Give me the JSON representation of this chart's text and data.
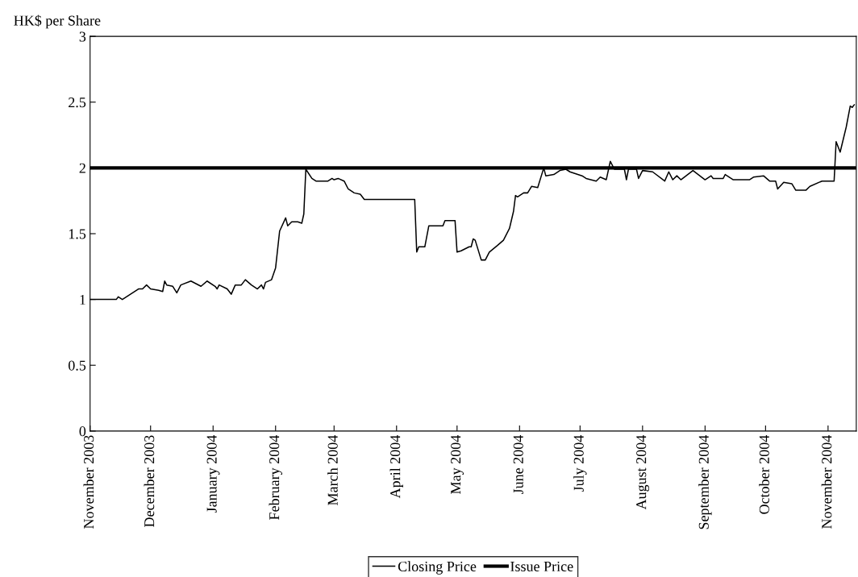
{
  "chart_data": {
    "type": "line",
    "ylabel": "HK$ per Share",
    "x": [
      "2003-11-01",
      "2003-11-14",
      "2003-11-15",
      "2003-11-17",
      "2003-11-21",
      "2003-11-25",
      "2003-11-27",
      "2003-11-29",
      "2003-12-01",
      "2003-12-05",
      "2003-12-07",
      "2003-12-08",
      "2003-12-09",
      "2003-12-12",
      "2003-12-14",
      "2003-12-16",
      "2003-12-21",
      "2003-12-26",
      "2003-12-29",
      "2004-01-02",
      "2004-01-03",
      "2004-01-04",
      "2004-01-08",
      "2004-01-10",
      "2004-01-12",
      "2004-01-15",
      "2004-01-17",
      "2004-01-20",
      "2004-01-23",
      "2004-01-25",
      "2004-01-26",
      "2004-01-27",
      "2004-01-30",
      "2004-02-01",
      "2004-02-03",
      "2004-02-06",
      "2004-02-07",
      "2004-02-09",
      "2004-02-12",
      "2004-02-14",
      "2004-02-15",
      "2004-02-16",
      "2004-02-19",
      "2004-02-21",
      "2004-02-27",
      "2004-02-29",
      "2004-03-01",
      "2004-03-03",
      "2004-03-06",
      "2004-03-08",
      "2004-03-11",
      "2004-03-14",
      "2004-03-16",
      "2004-04-10",
      "2004-04-11",
      "2004-04-12",
      "2004-04-15",
      "2004-04-17",
      "2004-04-24",
      "2004-04-25",
      "2004-04-30",
      "2004-05-01",
      "2004-05-03",
      "2004-05-07",
      "2004-05-08",
      "2004-05-09",
      "2004-05-10",
      "2004-05-13",
      "2004-05-15",
      "2004-05-17",
      "2004-05-21",
      "2004-05-24",
      "2004-05-27",
      "2004-05-29",
      "2004-05-30",
      "2004-05-31",
      "2004-06-03",
      "2004-06-05",
      "2004-06-07",
      "2004-06-10",
      "2004-06-13",
      "2004-06-14",
      "2004-06-18",
      "2004-06-21",
      "2004-06-24",
      "2004-06-26",
      "2004-07-02",
      "2004-07-04",
      "2004-07-09",
      "2004-07-11",
      "2004-07-14",
      "2004-07-16",
      "2004-07-18",
      "2004-07-23",
      "2004-07-24",
      "2004-07-25",
      "2004-07-29",
      "2004-07-30",
      "2004-08-01",
      "2004-08-06",
      "2004-08-12",
      "2004-08-14",
      "2004-08-16",
      "2004-08-18",
      "2004-08-20",
      "2004-08-26",
      "2004-09-01",
      "2004-09-04",
      "2004-09-05",
      "2004-09-10",
      "2004-09-11",
      "2004-09-15",
      "2004-09-23",
      "2004-09-25",
      "2004-09-30",
      "2004-10-03",
      "2004-10-06",
      "2004-10-07",
      "2004-10-10",
      "2004-10-14",
      "2004-10-16",
      "2004-10-21",
      "2004-10-23",
      "2004-10-29",
      "2004-11-04",
      "2004-11-05",
      "2004-11-07",
      "2004-11-10",
      "2004-11-12",
      "2004-11-13",
      "2004-11-14"
    ],
    "series": [
      {
        "name": "Closing Price",
        "color": "#000000",
        "values": [
          1.0,
          1.0,
          1.02,
          1.0,
          1.04,
          1.08,
          1.08,
          1.11,
          1.08,
          1.07,
          1.06,
          1.14,
          1.11,
          1.1,
          1.05,
          1.11,
          1.14,
          1.1,
          1.14,
          1.1,
          1.08,
          1.11,
          1.08,
          1.04,
          1.11,
          1.11,
          1.15,
          1.11,
          1.08,
          1.11,
          1.08,
          1.13,
          1.15,
          1.24,
          1.52,
          1.62,
          1.56,
          1.59,
          1.59,
          1.58,
          1.65,
          1.99,
          1.92,
          1.9,
          1.9,
          1.92,
          1.91,
          1.92,
          1.9,
          1.84,
          1.81,
          1.8,
          1.76,
          1.76,
          1.36,
          1.4,
          1.4,
          1.56,
          1.56,
          1.6,
          1.6,
          1.36,
          1.37,
          1.4,
          1.4,
          1.46,
          1.45,
          1.3,
          1.3,
          1.36,
          1.41,
          1.45,
          1.54,
          1.67,
          1.79,
          1.78,
          1.81,
          1.81,
          1.86,
          1.85,
          2.0,
          1.94,
          1.95,
          1.98,
          1.99,
          1.97,
          1.94,
          1.92,
          1.9,
          1.93,
          1.91,
          2.05,
          1.99,
          1.99,
          1.91,
          1.99,
          1.99,
          1.92,
          1.98,
          1.97,
          1.9,
          1.97,
          1.91,
          1.94,
          1.91,
          1.98,
          1.91,
          1.94,
          1.92,
          1.92,
          1.95,
          1.91,
          1.91,
          1.93,
          1.94,
          1.9,
          1.9,
          1.84,
          1.89,
          1.88,
          1.83,
          1.83,
          1.86,
          1.9,
          1.9,
          2.2,
          2.12,
          2.31,
          2.47,
          2.46,
          2.48
        ]
      }
    ],
    "ref_lines": [
      {
        "axis": "y",
        "value": 2,
        "label": "Issue Price",
        "color": "#000000"
      }
    ],
    "xlim": [
      "2003-11-01",
      "2004-11-15"
    ],
    "xticks": [
      {
        "value": "2003-11-01",
        "label": "November 2003"
      },
      {
        "value": "2003-12-01",
        "label": "December 2003"
      },
      {
        "value": "2004-01-01",
        "label": "January 2004"
      },
      {
        "value": "2004-02-01",
        "label": "February 2004"
      },
      {
        "value": "2004-03-01",
        "label": "March 2004"
      },
      {
        "value": "2004-04-01",
        "label": "April 2004"
      },
      {
        "value": "2004-05-01",
        "label": "May 2004"
      },
      {
        "value": "2004-06-01",
        "label": "June 2004"
      },
      {
        "value": "2004-07-01",
        "label": "July 2004"
      },
      {
        "value": "2004-08-01",
        "label": "August 2004"
      },
      {
        "value": "2004-09-01",
        "label": "September 2004"
      },
      {
        "value": "2004-10-01",
        "label": "October 2004"
      },
      {
        "value": "2004-11-01",
        "label": "November 2004"
      }
    ],
    "ylim": [
      0,
      3
    ],
    "yticks": [
      0,
      0.5,
      1,
      1.5,
      2,
      2.5,
      3
    ],
    "grid": false,
    "legend": "bottom",
    "marker": "none",
    "line_style": "solid"
  }
}
